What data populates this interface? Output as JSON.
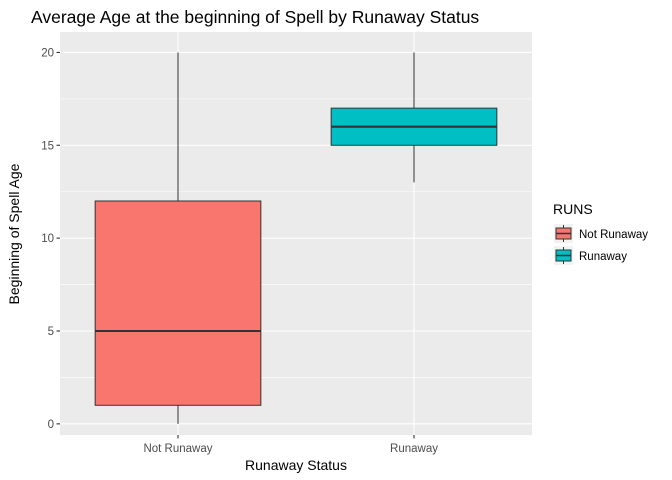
{
  "chart_data": {
    "type": "boxplot",
    "title": "Average Age at the beginning of Spell by Runaway Status",
    "xlabel": "Runaway Status",
    "ylabel": "Beginning of Spell Age",
    "categories": [
      "Not Runaway",
      "Runaway"
    ],
    "boxes": [
      {
        "category": "Not Runaway",
        "min": 0,
        "q1": 1,
        "median": 5,
        "q3": 12,
        "max": 20,
        "color": "#F8766D"
      },
      {
        "category": "Runaway",
        "min": 13,
        "q1": 15,
        "median": 16,
        "q3": 17,
        "max": 20,
        "color": "#00BFC4"
      }
    ],
    "yticks": [
      0,
      5,
      10,
      15,
      20
    ],
    "ylim": [
      -0.6,
      21.1
    ],
    "grid": true,
    "legend": {
      "title": "RUNS",
      "placement": "right",
      "entries": [
        {
          "label": "Not Runaway",
          "color": "#F8766D"
        },
        {
          "label": "Runaway",
          "color": "#00BFC4"
        }
      ]
    },
    "panel_background": "#EBEBEB",
    "grid_color": "#FFFFFF"
  }
}
